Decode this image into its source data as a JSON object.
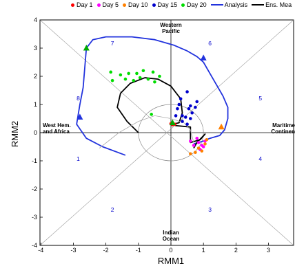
{
  "chart_data": {
    "type": "scatter",
    "title": "",
    "xlabel": "RMM1",
    "ylabel": "RMM2",
    "xlim": [
      -4,
      4
    ],
    "ylim": [
      -4,
      4
    ],
    "x_ticks": [
      "-4",
      "-3",
      "-2",
      "-1",
      "0",
      "1",
      "2",
      "3"
    ],
    "y_ticks": [
      "-4",
      "-3",
      "-2",
      "-1",
      "0",
      "1",
      "2",
      "3",
      "4"
    ],
    "grid": false,
    "legend_position": "top",
    "legend": [
      {
        "label": "Day 1",
        "color": "#ff0000",
        "kind": "dot"
      },
      {
        "label": "Day 5",
        "color": "#ff00ff",
        "kind": "dot"
      },
      {
        "label": "Day 10",
        "color": "#ff8000",
        "kind": "dot"
      },
      {
        "label": "Day 15",
        "color": "#0000cc",
        "kind": "dot"
      },
      {
        "label": "Day 20",
        "color": "#00dd00",
        "kind": "dot"
      },
      {
        "label": "Analysis",
        "color": "#2233dd",
        "kind": "line"
      },
      {
        "label": "Ens. Mea",
        "color": "#000000",
        "kind": "line"
      }
    ],
    "region_labels": [
      {
        "lines": [
          "Western",
          "Pacific"
        ],
        "anchor": "top"
      },
      {
        "lines": [
          "West Hem.",
          "and Africa"
        ],
        "anchor": "left"
      },
      {
        "lines": [
          "Maritime",
          "Continen"
        ],
        "anchor": "right"
      },
      {
        "lines": [
          "Indian",
          "Ocean"
        ],
        "anchor": "bottom"
      }
    ],
    "phase_labels": [
      {
        "text": "1",
        "x": -2.85,
        "y": -1.0
      },
      {
        "text": "2",
        "x": -1.8,
        "y": -2.8
      },
      {
        "text": "3",
        "x": 1.2,
        "y": -2.8
      },
      {
        "text": "4",
        "x": 2.75,
        "y": -1.0
      },
      {
        "text": "5",
        "x": 2.75,
        "y": 1.15
      },
      {
        "text": "6",
        "x": 1.2,
        "y": 3.1
      },
      {
        "text": "7",
        "x": -1.8,
        "y": 3.1
      },
      {
        "text": "8",
        "x": -2.85,
        "y": 1.15
      }
    ],
    "series": [
      {
        "name": "Analysis",
        "color": "#2233dd",
        "kind": "line",
        "x": [
          -1.4,
          -2.1,
          -2.6,
          -2.9,
          -2.8,
          -2.7,
          -2.65,
          -2.6,
          -2.4,
          -2.0,
          -1.2,
          -0.5,
          0.1,
          0.5,
          0.8,
          1.0,
          1.2,
          1.4,
          1.6,
          1.75,
          1.75,
          1.65,
          1.5,
          1.2,
          1.0,
          0.7
        ],
        "y": [
          -0.8,
          -0.5,
          -0.2,
          0.3,
          1.0,
          1.6,
          2.3,
          3.0,
          3.3,
          3.4,
          3.4,
          3.3,
          3.1,
          2.9,
          2.7,
          2.5,
          2.1,
          1.7,
          1.3,
          0.9,
          0.5,
          0.1,
          -0.1,
          -0.2,
          -0.3,
          -0.4
        ]
      },
      {
        "name": "Ens. Mea",
        "color": "#000000",
        "kind": "line",
        "x": [
          -1.0,
          -1.35,
          -1.65,
          -1.55,
          -1.25,
          -0.8,
          -0.4,
          0.0,
          0.3,
          0.35,
          0.25,
          0.05,
          0.15,
          0.6,
          0.6,
          0.9,
          1.05,
          0.8,
          0.7
        ],
        "y": [
          0.0,
          0.4,
          0.9,
          1.4,
          1.75,
          1.95,
          1.9,
          1.65,
          1.2,
          0.7,
          0.35,
          0.3,
          0.25,
          0.2,
          -0.35,
          -0.25,
          -0.05,
          -0.35,
          -0.55
        ]
      },
      {
        "name": "Ens. members",
        "color": "#aaaaaa",
        "kind": "line",
        "x": [
          -2.2,
          -1.6,
          -1.0,
          -0.5,
          0.0,
          0.4,
          0.6,
          0.7
        ],
        "y": [
          -0.55,
          0.0,
          0.4,
          0.6,
          0.5,
          0.35,
          0.1,
          -0.35
        ]
      },
      {
        "name": "Day 1",
        "color": "#ff0000",
        "kind": "dot",
        "x": [
          0.05,
          0.0,
          0.12
        ],
        "y": [
          0.28,
          0.32,
          0.3
        ]
      },
      {
        "name": "Day 5",
        "color": "#ff00ff",
        "kind": "dot",
        "x": [
          0.85,
          0.95,
          1.05,
          0.9,
          0.8,
          1.0,
          0.7,
          0.6
        ],
        "y": [
          -0.35,
          -0.45,
          -0.3,
          -0.6,
          -0.2,
          -0.5,
          -0.45,
          -0.3
        ]
      },
      {
        "name": "Day 10",
        "color": "#ff8000",
        "kind": "dot",
        "x": [
          0.6,
          0.75,
          0.95,
          1.05,
          0.85,
          1.1
        ],
        "y": [
          -0.75,
          -0.7,
          -0.65,
          -0.4,
          -0.55,
          -0.25
        ]
      },
      {
        "name": "Day 15",
        "color": "#0000cc",
        "kind": "dot",
        "x": [
          0.3,
          0.5,
          0.6,
          0.2,
          0.8,
          0.65,
          0.45,
          0.35,
          0.55,
          0.15,
          0.75,
          0.25,
          0.6,
          0.35,
          0.5
        ],
        "y": [
          1.2,
          1.45,
          0.95,
          0.85,
          1.1,
          0.7,
          0.55,
          0.6,
          0.85,
          0.6,
          0.9,
          1.0,
          0.5,
          0.4,
          0.3
        ]
      },
      {
        "name": "Day 20",
        "color": "#00dd00",
        "kind": "dot",
        "x": [
          -1.85,
          -1.55,
          -1.3,
          -1.05,
          -0.85,
          -0.55,
          -0.35,
          -1.4,
          -1.15,
          -0.95,
          -0.7,
          -0.5,
          -1.8,
          -0.6
        ],
        "y": [
          2.15,
          2.05,
          2.1,
          2.1,
          2.2,
          2.15,
          2.0,
          1.9,
          1.85,
          1.95,
          1.9,
          1.8,
          1.85,
          0.65
        ]
      },
      {
        "name": "Triangle markers",
        "color": "#00aa00",
        "kind": "marker",
        "x": [
          -2.6,
          0.05
        ],
        "y": [
          3.0,
          0.35
        ]
      },
      {
        "name": "Analysis markers",
        "color": "#2233dd",
        "kind": "marker",
        "x": [
          1.0,
          -2.8
        ],
        "y": [
          2.65,
          0.55
        ]
      },
      {
        "name": "Orange marker",
        "color": "#ff8000",
        "kind": "marker",
        "x": [
          1.55
        ],
        "y": [
          0.2
        ]
      }
    ]
  }
}
